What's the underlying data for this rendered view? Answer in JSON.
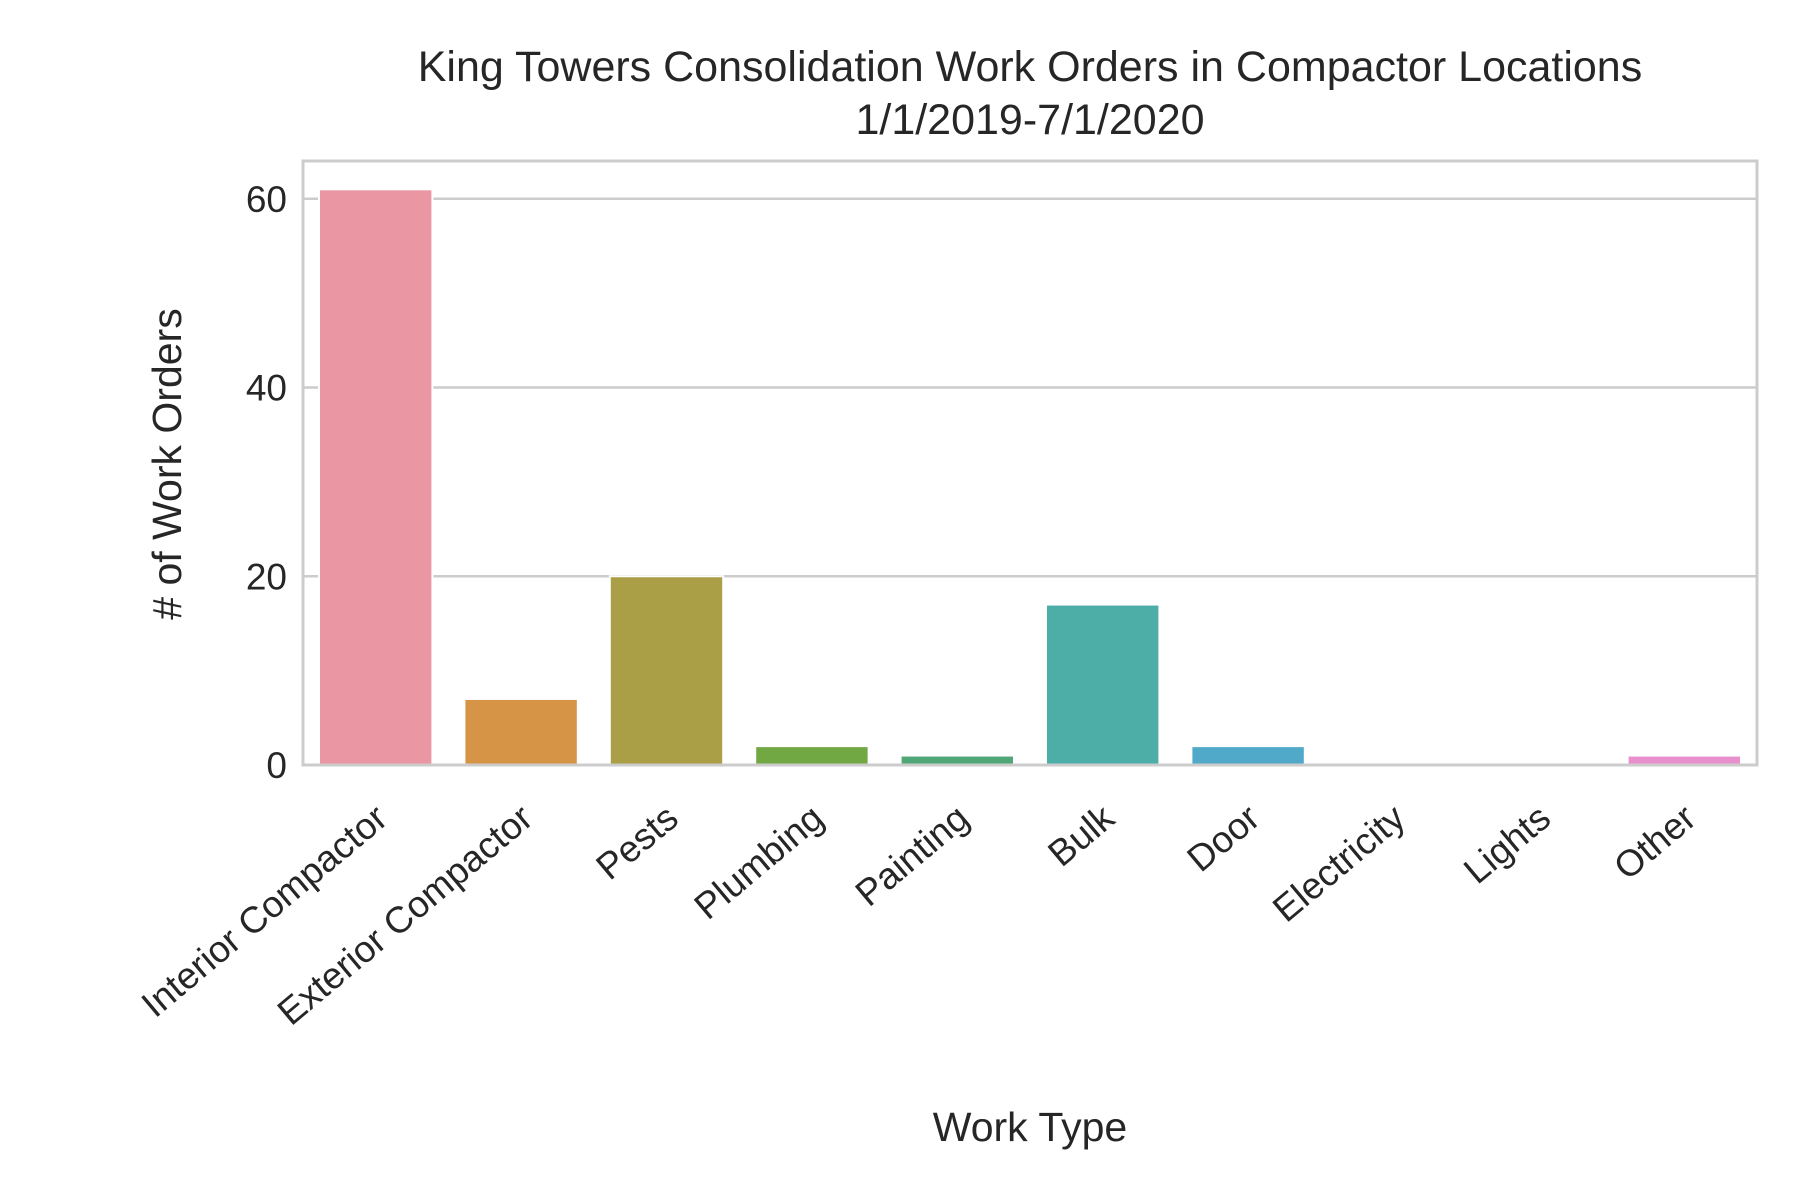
{
  "chart_data": {
    "type": "bar",
    "title": "King Towers Consolidation Work Orders in Compactor Locations",
    "subtitle": "1/1/2019-7/1/2020",
    "xlabel": "Work Type",
    "ylabel": "# of Work Orders",
    "categories": [
      "Interior Compactor",
      "Exterior Compactor",
      "Pests",
      "Plumbing",
      "Painting",
      "Bulk",
      "Door",
      "Electricity",
      "Lights",
      "Other"
    ],
    "values": [
      61,
      7,
      20,
      2,
      1,
      17,
      2,
      0,
      0,
      1
    ],
    "colors": [
      "#ea96a3",
      "#d59446",
      "#aa9e46",
      "#72a843",
      "#4fa777",
      "#4dada7",
      "#50a9c9",
      "#9aa7f0",
      "#df91ec",
      "#e88fcd"
    ],
    "ylim": [
      0,
      64
    ],
    "yticks": [
      0,
      20,
      40,
      60
    ],
    "grid": true,
    "legend": "none"
  }
}
